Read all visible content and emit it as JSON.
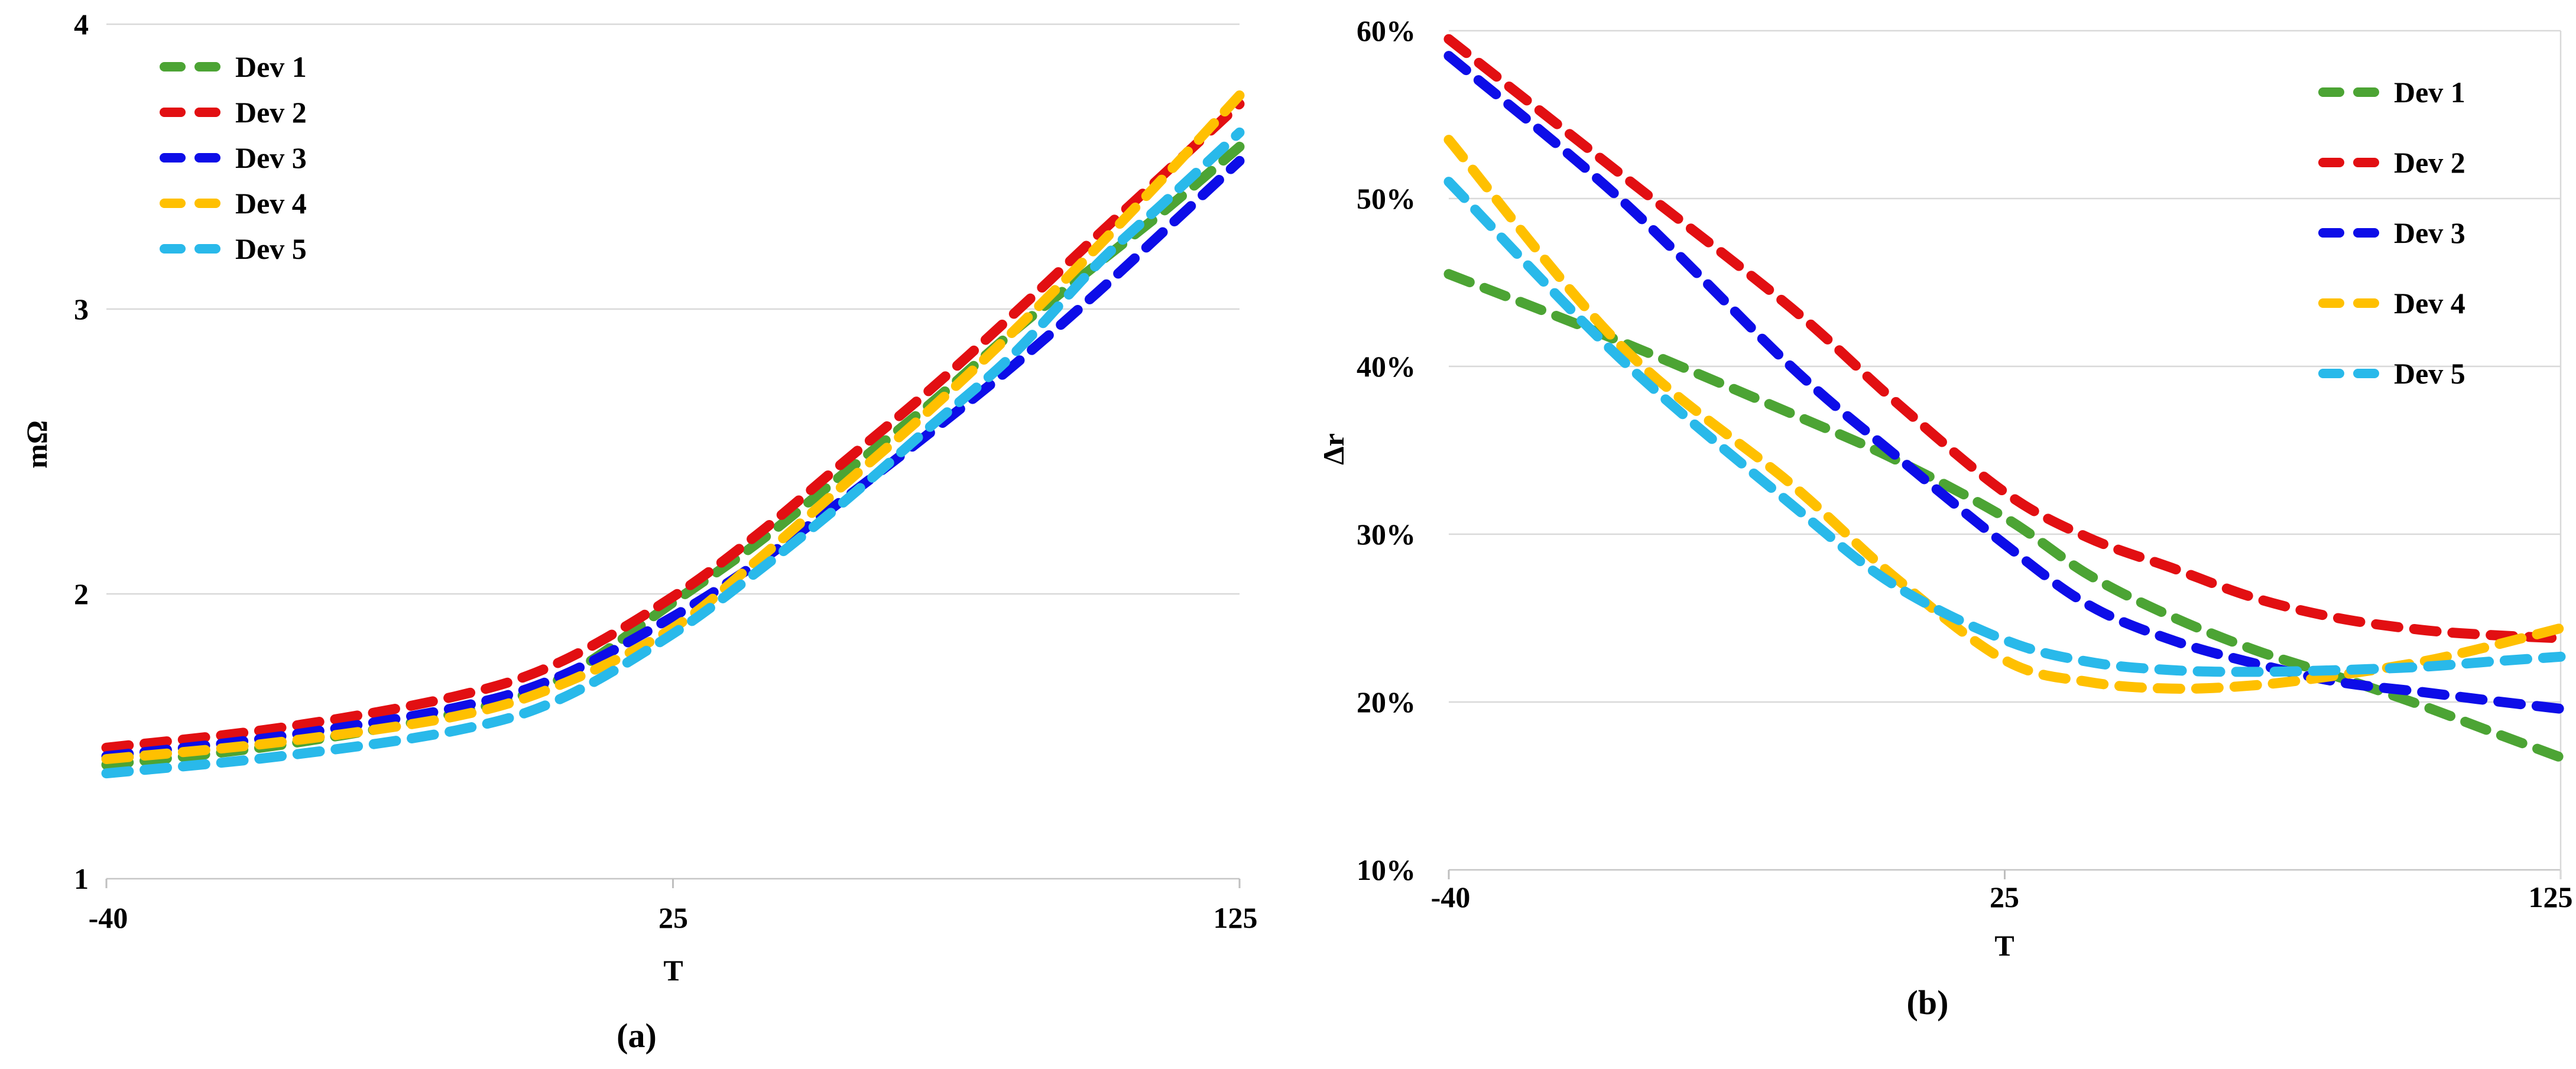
{
  "figure_title": "",
  "chart_data": [
    {
      "type": "line",
      "caption": "(a)",
      "xlabel": "T",
      "ylabel": "mΩ",
      "ylim": [
        1,
        4
      ],
      "grid": true,
      "legend_position": "top-left",
      "x_ticks": [
        {
          "label": "-40",
          "t": -40
        },
        {
          "label": "25",
          "t": 25
        },
        {
          "label": "125",
          "t": 125
        }
      ],
      "y_ticks": [
        {
          "label": "4",
          "v": 4
        },
        {
          "label": "3",
          "v": 3
        },
        {
          "label": "2",
          "v": 2
        },
        {
          "label": "1",
          "v": 1
        }
      ],
      "series": [
        {
          "name": "Dev 1",
          "color": "#4CA434",
          "x": [
            -40,
            -20,
            0,
            12,
            25,
            40,
            55,
            70,
            85,
            100,
            112,
            125
          ],
          "y": [
            1.4,
            1.47,
            1.58,
            1.7,
            1.97,
            2.18,
            2.42,
            2.66,
            2.92,
            3.16,
            3.35,
            3.57
          ]
        },
        {
          "name": "Dev 2",
          "color": "#E20F12",
          "x": [
            -40,
            -20,
            0,
            12,
            25,
            40,
            55,
            70,
            85,
            100,
            112,
            125
          ],
          "y": [
            1.46,
            1.53,
            1.64,
            1.76,
            1.99,
            2.21,
            2.46,
            2.71,
            2.98,
            3.26,
            3.48,
            3.72
          ]
        },
        {
          "name": "Dev 3",
          "color": "#0D0DE8",
          "x": [
            -40,
            -20,
            0,
            12,
            25,
            40,
            55,
            70,
            85,
            100,
            112,
            125
          ],
          "y": [
            1.43,
            1.5,
            1.6,
            1.71,
            1.92,
            2.11,
            2.33,
            2.56,
            2.8,
            3.06,
            3.28,
            3.52
          ]
        },
        {
          "name": "Dev 4",
          "color": "#FFC000",
          "x": [
            -40,
            -20,
            0,
            12,
            25,
            40,
            55,
            70,
            85,
            100,
            112,
            125
          ],
          "y": [
            1.42,
            1.48,
            1.57,
            1.68,
            1.88,
            2.12,
            2.38,
            2.64,
            2.92,
            3.22,
            3.47,
            3.75
          ]
        },
        {
          "name": "Dev 5",
          "color": "#29B9EA",
          "x": [
            -40,
            -20,
            0,
            12,
            25,
            40,
            55,
            70,
            85,
            100,
            112,
            125
          ],
          "y": [
            1.37,
            1.43,
            1.52,
            1.63,
            1.86,
            2.08,
            2.32,
            2.58,
            2.84,
            3.16,
            3.38,
            3.62
          ]
        }
      ]
    },
    {
      "type": "line",
      "caption": "(b)",
      "xlabel": "T",
      "ylabel": "Δr",
      "ylim": [
        10,
        60
      ],
      "grid": true,
      "legend_position": "top-right",
      "x_ticks": [
        {
          "label": "-40",
          "t": -40
        },
        {
          "label": "25",
          "t": 25
        },
        {
          "label": "125",
          "t": 125
        }
      ],
      "y_ticks": [
        {
          "label": "60%",
          "v": 60
        },
        {
          "label": "50%",
          "v": 50
        },
        {
          "label": "40%",
          "v": 40
        },
        {
          "label": "30%",
          "v": 30
        },
        {
          "label": "20%",
          "v": 20
        },
        {
          "label": "10%",
          "v": 10
        }
      ],
      "series": [
        {
          "name": "Dev 1",
          "color": "#4CA434",
          "x": [
            -40,
            -20,
            0,
            12,
            25,
            40,
            55,
            70,
            85,
            100,
            112,
            125
          ],
          "y": [
            45.5,
            41.5,
            37.2,
            34.5,
            31.0,
            27.6,
            25.1,
            23.1,
            21.5,
            19.8,
            18.3,
            16.7
          ]
        },
        {
          "name": "Dev 2",
          "color": "#E20F12",
          "x": [
            -40,
            -20,
            0,
            12,
            25,
            40,
            55,
            70,
            85,
            100,
            112,
            125
          ],
          "y": [
            59.5,
            51.5,
            43.5,
            38.0,
            32.5,
            29.8,
            28.0,
            26.2,
            25.0,
            24.3,
            24.0,
            23.8
          ]
        },
        {
          "name": "Dev 3",
          "color": "#0D0DE8",
          "x": [
            -40,
            -20,
            0,
            12,
            25,
            40,
            55,
            70,
            85,
            100,
            112,
            125
          ],
          "y": [
            58.5,
            50.0,
            40.0,
            34.8,
            29.4,
            25.8,
            23.7,
            22.3,
            21.2,
            20.6,
            20.1,
            19.6
          ]
        },
        {
          "name": "Dev 4",
          "color": "#FFC000",
          "x": [
            -40,
            -20,
            0,
            12,
            25,
            40,
            55,
            70,
            85,
            100,
            112,
            125
          ],
          "y": [
            53.5,
            41.3,
            33.0,
            27.5,
            22.5,
            21.2,
            20.8,
            21.0,
            21.6,
            22.4,
            23.3,
            24.4
          ]
        },
        {
          "name": "Dev 5",
          "color": "#29B9EA",
          "x": [
            -40,
            -20,
            0,
            12,
            25,
            40,
            55,
            70,
            85,
            100,
            112,
            125
          ],
          "y": [
            51.0,
            40.5,
            31.8,
            27.0,
            23.7,
            22.4,
            21.9,
            21.8,
            21.9,
            22.1,
            22.4,
            22.7
          ]
        }
      ]
    }
  ],
  "style_colors": {
    "gridline": "#D9D9D9",
    "axis_line": "#C6C6C6",
    "tick_mark": "#BFBFBF"
  }
}
